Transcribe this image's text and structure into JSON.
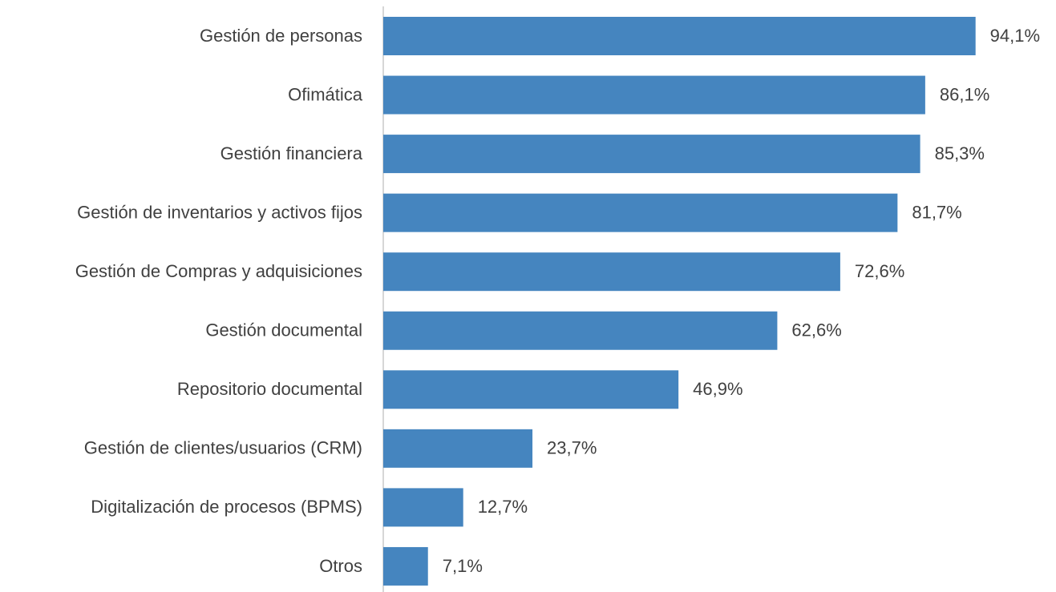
{
  "chart_data": {
    "type": "barh",
    "categories": [
      "Gestión de personas",
      "Ofimática",
      "Gestión financiera",
      "Gestión de inventarios y activos fijos",
      "Gestión de Compras y adquisiciones",
      "Gestión documental",
      "Repositorio documental",
      "Gestión de clientes/usuarios (CRM)",
      "Digitalización de procesos (BPMS)",
      "Otros"
    ],
    "values": [
      94.1,
      86.1,
      85.3,
      81.7,
      72.6,
      62.6,
      46.9,
      23.7,
      12.7,
      7.1
    ],
    "value_labels": [
      "94,1%",
      "86,1%",
      "85,3%",
      "81,7%",
      "72,6%",
      "62,6%",
      "46,9%",
      "23,7%",
      "12,7%",
      "7,1%"
    ],
    "color": "#4585bf",
    "xlim": [
      0,
      100
    ]
  }
}
